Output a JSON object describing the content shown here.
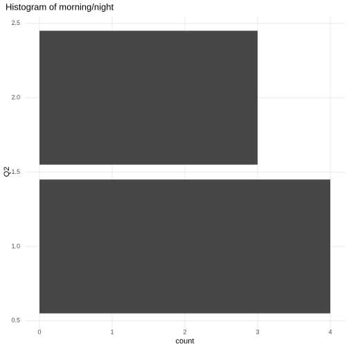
{
  "chart_data": {
    "type": "bar",
    "orientation": "horizontal",
    "title": "Histogram of morning/night",
    "x_label": "count",
    "y_label": "Q2",
    "y": [
      1,
      2
    ],
    "values": [
      4,
      3
    ],
    "color": "#474747",
    "xlim": [
      -0.2,
      4.2
    ],
    "xticks": [
      0,
      1,
      2,
      3,
      4
    ],
    "ylim": [
      0.455,
      2.545
    ],
    "yticks": [
      0.5,
      {
        "value": 1,
        "label": "1.0"
      },
      1.5,
      {
        "value": 2,
        "label": "2.0"
      },
      2.5
    ],
    "grid": true
  }
}
